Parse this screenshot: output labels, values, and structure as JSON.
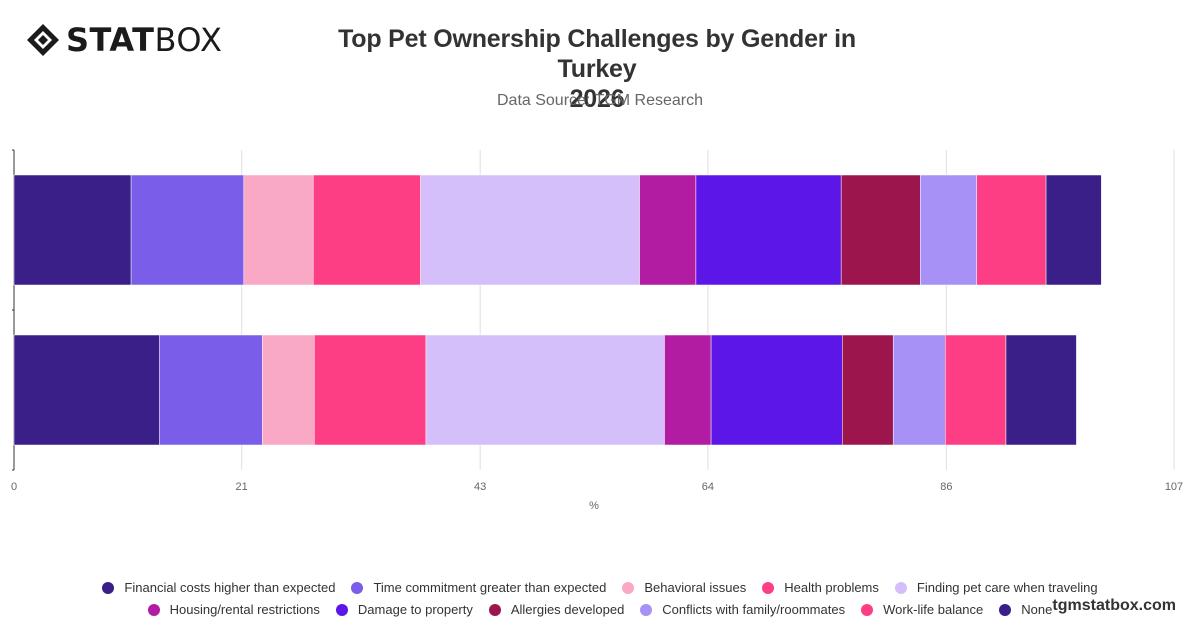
{
  "brand": {
    "logo_text_bold": "STAT",
    "logo_text_light": "BOX",
    "watermark": "tgmstatbox.com"
  },
  "header": {
    "title_line1": "Top Pet Ownership Challenges by Gender in Turkey",
    "title_line2": "2026",
    "subtitle": "Data Source: TGM Research"
  },
  "chart_data": {
    "type": "bar",
    "orientation": "horizontal",
    "stacked": true,
    "categories": [
      "",
      ""
    ],
    "xlabel": "%",
    "xlim": [
      0,
      107
    ],
    "xticks": [
      "0",
      "21",
      "43",
      "64",
      "86",
      "107"
    ],
    "grid": true,
    "legend_position": "bottom",
    "series": [
      {
        "name": "Financial costs higher than expected",
        "color": "#3a1f88",
        "values": [
          10.8,
          13.4
        ]
      },
      {
        "name": "Time commitment greater than expected",
        "color": "#7a5de8",
        "values": [
          10.4,
          9.5
        ]
      },
      {
        "name": "Behavioral issues",
        "color": "#f9a8c6",
        "values": [
          6.4,
          4.8
        ]
      },
      {
        "name": "Health problems",
        "color": "#fd3d84",
        "values": [
          9.9,
          10.3
        ]
      },
      {
        "name": "Finding pet care when traveling",
        "color": "#d4bffb",
        "values": [
          20.2,
          22.0
        ]
      },
      {
        "name": "Housing/rental restrictions",
        "color": "#b21ca2",
        "values": [
          5.2,
          4.3
        ]
      },
      {
        "name": "Damage to property",
        "color": "#5c17e8",
        "values": [
          13.4,
          12.1
        ]
      },
      {
        "name": "Allergies developed",
        "color": "#9c164d",
        "values": [
          7.3,
          4.7
        ]
      },
      {
        "name": "Conflicts with family/roommates",
        "color": "#a791f7",
        "values": [
          5.2,
          4.8
        ]
      },
      {
        "name": "Work-life balance",
        "color": "#fd3d84",
        "values": [
          6.4,
          5.6
        ]
      },
      {
        "name": "None",
        "color": "#3a1f88",
        "values": [
          5.1,
          6.5
        ]
      }
    ]
  }
}
